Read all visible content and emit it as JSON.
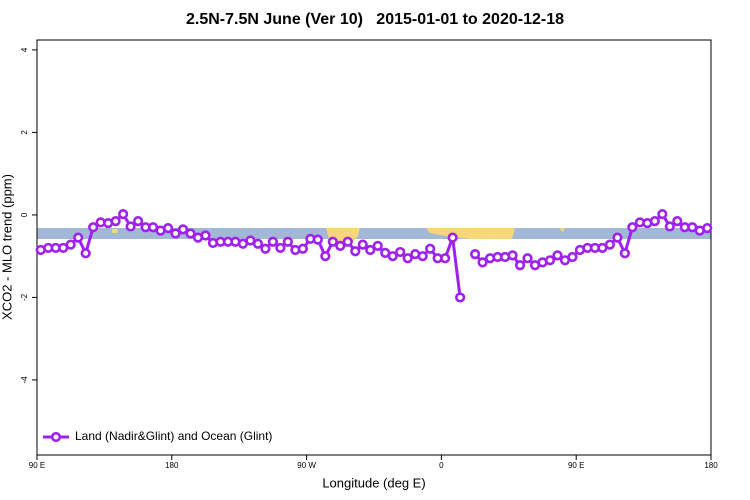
{
  "chart_data": {
    "type": "line",
    "title": "2.5N-7.5N June (Ver 10)   2015-01-01 to 2020-12-18",
    "x_label": "Longitude (deg E)",
    "y_label": "XCO2 - MLO trend (ppm)",
    "xlim": [
      90,
      540
    ],
    "ylim": [
      -5.82,
      4.24
    ],
    "xticks": [
      {
        "value": 90,
        "label": "90 E"
      },
      180,
      {
        "value": 270,
        "label": "90 W"
      },
      {
        "value": 360,
        "label": "0"
      },
      {
        "value": 450,
        "label": "90 E"
      },
      {
        "value": 540,
        "label": "180"
      }
    ],
    "yticks": [
      -4,
      -2,
      0,
      2,
      4
    ],
    "legend": "bottomleft",
    "x": [
      92.5,
      97.5,
      102.5,
      107.5,
      112.5,
      117.5,
      122.5,
      127.5,
      132.5,
      137.5,
      142.5,
      147.5,
      152.5,
      157.5,
      162.5,
      167.5,
      172.5,
      177.5,
      182.5,
      187.5,
      192.5,
      197.5,
      202.5,
      207.5,
      212.5,
      217.5,
      222.5,
      227.5,
      232.5,
      237.5,
      242.5,
      247.5,
      252.5,
      257.5,
      262.5,
      267.5,
      272.5,
      277.5,
      282.5,
      287.5,
      292.5,
      297.5,
      302.5,
      307.5,
      312.5,
      317.5,
      322.5,
      327.5,
      332.5,
      337.5,
      342.5,
      347.5,
      352.5,
      357.5,
      362.5,
      367.5,
      372.5,
      377.5,
      382.5,
      387.5,
      392.5,
      397.5,
      402.5,
      407.5,
      412.5,
      417.5,
      422.5,
      427.5,
      432.5,
      437.5,
      442.5,
      447.5,
      452.5,
      457.5,
      462.5,
      467.5,
      472.5,
      477.5,
      482.5,
      487.5,
      492.5,
      497.5,
      502.5,
      507.5,
      512.5,
      517.5,
      522.5,
      527.5,
      532.5,
      537.5
    ],
    "series": [
      {
        "name": "Land (Nadir&Glint) and Ocean (Glint)",
        "color": "#a020f0",
        "values": [
          -0.85,
          -0.8,
          -0.8,
          -0.8,
          -0.72,
          -0.55,
          -0.93,
          -0.3,
          -0.18,
          -0.2,
          -0.15,
          0.02,
          -0.28,
          -0.15,
          -0.3,
          -0.3,
          -0.38,
          -0.32,
          -0.45,
          -0.35,
          -0.45,
          -0.55,
          -0.5,
          -0.68,
          -0.65,
          -0.65,
          -0.65,
          -0.7,
          -0.62,
          -0.7,
          -0.82,
          -0.65,
          -0.8,
          -0.65,
          -0.85,
          -0.82,
          -0.58,
          -0.6,
          -1.0,
          -0.65,
          -0.75,
          -0.65,
          -0.88,
          -0.72,
          -0.85,
          -0.75,
          -0.92,
          -1.0,
          -0.9,
          -1.05,
          -0.95,
          -1.0,
          -0.82,
          -1.05,
          -1.05,
          -0.55,
          -2.0,
          null,
          -0.95,
          -1.15,
          -1.05,
          -1.02,
          -1.02,
          -0.98,
          -1.22,
          -1.05,
          -1.22,
          -1.15,
          -1.1,
          -0.98,
          -1.1,
          -1.02,
          -0.85,
          -0.8,
          -0.8,
          -0.8,
          -0.72,
          -0.55,
          -0.93,
          -0.3,
          -0.18,
          -0.2,
          -0.15,
          0.02,
          -0.28,
          -0.15,
          -0.3,
          -0.3,
          -0.38,
          -0.32
        ]
      }
    ]
  }
}
